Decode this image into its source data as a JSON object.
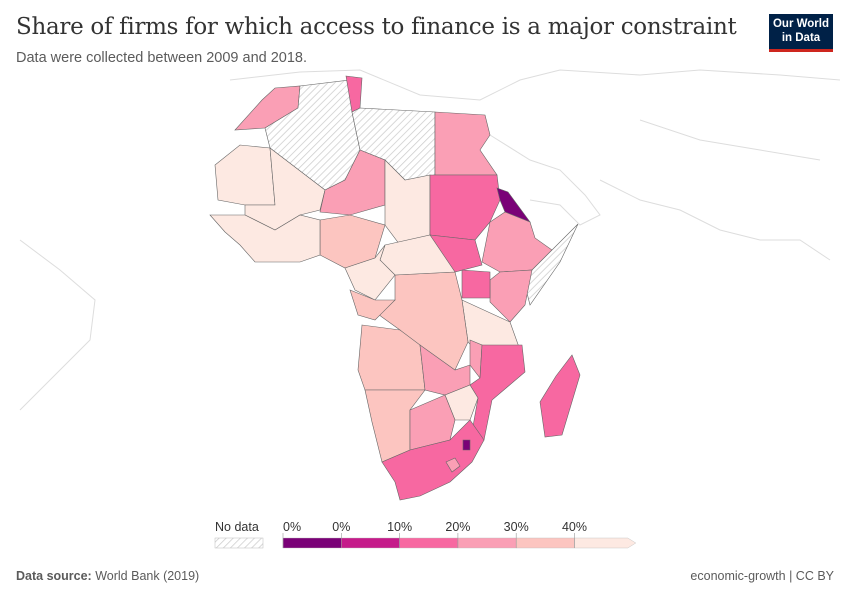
{
  "header": {
    "title": "Share of firms for which access to finance is a major constraint",
    "subtitle": "Data were collected between 2009 and 2018.",
    "logo": "Our World in Data"
  },
  "footer": {
    "source_label": "Data source:",
    "source": "World Bank (2019)",
    "right": "economic-growth | CC BY"
  },
  "chart_data": {
    "type": "choropleth",
    "title": "Share of firms for which access to finance is a major constraint",
    "subtitle": "Data were collected between 2009 and 2018.",
    "legend": {
      "no_data_label": "No data",
      "ticks": [
        "0%",
        "0%",
        "10%",
        "20%",
        "30%",
        "40%"
      ],
      "bins": [
        {
          "range": "0%–0%",
          "color": "#7a0177"
        },
        {
          "range": "0–10%",
          "color": "#c51b8a"
        },
        {
          "range": "10–20%",
          "color": "#f768a1"
        },
        {
          "range": "20–30%",
          "color": "#fa9fb5"
        },
        {
          "range": "30–40%",
          "color": "#fcc5c0"
        },
        {
          "range": ">40%",
          "color": "#fde9e2"
        }
      ]
    },
    "regions": [
      {
        "id": "morocco",
        "bin": "20–30%"
      },
      {
        "id": "algeria",
        "bin": "No data"
      },
      {
        "id": "tunisia",
        "bin": "10–20%"
      },
      {
        "id": "libya",
        "bin": "No data"
      },
      {
        "id": "egypt",
        "bin": "20–30%"
      },
      {
        "id": "mauritania",
        "bin": ">40%"
      },
      {
        "id": "mali",
        "bin": ">40%"
      },
      {
        "id": "niger",
        "bin": "20–30%"
      },
      {
        "id": "chad",
        "bin": ">40%"
      },
      {
        "id": "sudan",
        "bin": "10–20%"
      },
      {
        "id": "south-sudan",
        "bin": "10–20%"
      },
      {
        "id": "eritrea",
        "bin": "0%–0%"
      },
      {
        "id": "ethiopia",
        "bin": "20–30%"
      },
      {
        "id": "somalia",
        "bin": "No data"
      },
      {
        "id": "kenya",
        "bin": "20–30%"
      },
      {
        "id": "uganda",
        "bin": "10–20%"
      },
      {
        "id": "tanzania",
        "bin": ">40%"
      },
      {
        "id": "drc",
        "bin": "30–40%"
      },
      {
        "id": "car",
        "bin": ">40%"
      },
      {
        "id": "nigeria",
        "bin": "30–40%"
      },
      {
        "id": "cameroon",
        "bin": ">40%"
      },
      {
        "id": "west-africa",
        "bin": ">40%"
      },
      {
        "id": "congo-gabon",
        "bin": "30–40%"
      },
      {
        "id": "angola",
        "bin": "30–40%"
      },
      {
        "id": "zambia",
        "bin": "20–30%"
      },
      {
        "id": "malawi",
        "bin": "20–30%"
      },
      {
        "id": "mozambique",
        "bin": "10–20%"
      },
      {
        "id": "zimbabwe",
        "bin": ">40%"
      },
      {
        "id": "namibia",
        "bin": "30–40%"
      },
      {
        "id": "botswana",
        "bin": "20–30%"
      },
      {
        "id": "south-africa",
        "bin": "10–20%"
      },
      {
        "id": "madagascar",
        "bin": "10–20%"
      },
      {
        "id": "eswatini",
        "bin": "0%–0%"
      },
      {
        "id": "lesotho",
        "bin": "20–30%"
      }
    ]
  }
}
